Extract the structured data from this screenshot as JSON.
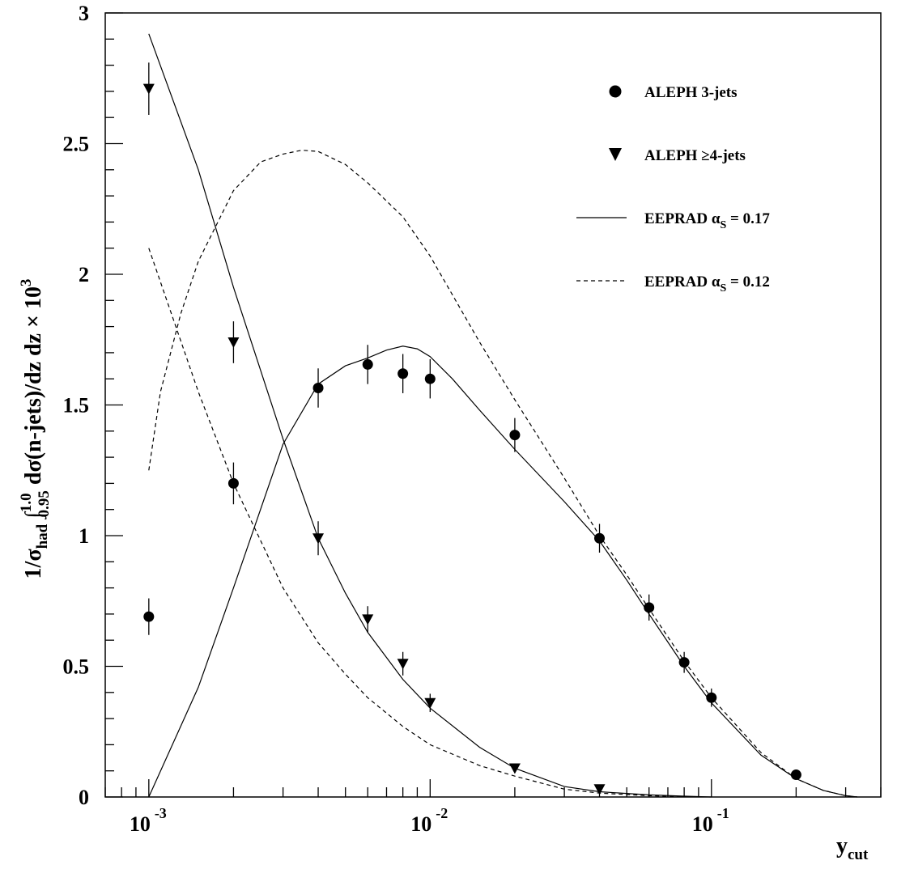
{
  "chart_data": {
    "type": "scatter",
    "x_scale": "log",
    "xlim": [
      0.0007,
      0.4
    ],
    "ylim": [
      0,
      3
    ],
    "x_ticks": [
      {
        "value": 0.001,
        "base": "10",
        "exp": "-3"
      },
      {
        "value": 0.01,
        "base": "10",
        "exp": "-2"
      },
      {
        "value": 0.1,
        "base": "10",
        "exp": "-1"
      }
    ],
    "y_ticks": [
      {
        "value": 0,
        "label": "0"
      },
      {
        "value": 0.5,
        "label": "0.5"
      },
      {
        "value": 1,
        "label": "1"
      },
      {
        "value": 1.5,
        "label": "1.5"
      },
      {
        "value": 2,
        "label": "2"
      },
      {
        "value": 2.5,
        "label": "2.5"
      },
      {
        "value": 3,
        "label": "3"
      }
    ],
    "xlabel": {
      "main": "y",
      "sub": "cut"
    },
    "ylabel": {
      "p1": "1/σ",
      "p1_sub": "had",
      "int_sign": "∫",
      "int_sup": "1.0",
      "int_sub": "0.95",
      "p2": " dσ(n-jets)/dz dz × 10",
      "p2_sup": "3"
    },
    "legend": {
      "position": "top-right",
      "entries": [
        {
          "marker": "circle",
          "label": "ALEPH 3-jets"
        },
        {
          "marker": "triangle-down",
          "label": "ALEPH ≥4-jets"
        },
        {
          "marker": "solid-line",
          "label": "EEPRAD α",
          "sub": "S",
          "tail": " = 0.17"
        },
        {
          "marker": "dashed-line",
          "label": "EEPRAD α",
          "sub": "S",
          "tail": " = 0.12"
        }
      ]
    },
    "series": [
      {
        "name": "ALEPH 3-jets",
        "marker": "circle",
        "points": [
          {
            "x": 0.001,
            "y": 0.69,
            "err": 0.07
          },
          {
            "x": 0.002,
            "y": 1.2,
            "err": 0.08
          },
          {
            "x": 0.004,
            "y": 1.565,
            "err": 0.075
          },
          {
            "x": 0.006,
            "y": 1.655,
            "err": 0.075
          },
          {
            "x": 0.008,
            "y": 1.62,
            "err": 0.075
          },
          {
            "x": 0.01,
            "y": 1.6,
            "err": 0.075
          },
          {
            "x": 0.02,
            "y": 1.385,
            "err": 0.065
          },
          {
            "x": 0.04,
            "y": 0.99,
            "err": 0.055
          },
          {
            "x": 0.06,
            "y": 0.725,
            "err": 0.05
          },
          {
            "x": 0.08,
            "y": 0.515,
            "err": 0.04
          },
          {
            "x": 0.1,
            "y": 0.38,
            "err": 0.035
          },
          {
            "x": 0.2,
            "y": 0.085,
            "err": 0.015
          }
        ]
      },
      {
        "name": "ALEPH ≥4-jets",
        "marker": "triangle-down",
        "points": [
          {
            "x": 0.001,
            "y": 2.71,
            "err": 0.1
          },
          {
            "x": 0.002,
            "y": 1.74,
            "err": 0.08
          },
          {
            "x": 0.004,
            "y": 0.99,
            "err": 0.065
          },
          {
            "x": 0.006,
            "y": 0.68,
            "err": 0.05
          },
          {
            "x": 0.008,
            "y": 0.51,
            "err": 0.045
          },
          {
            "x": 0.01,
            "y": 0.36,
            "err": 0.035
          },
          {
            "x": 0.02,
            "y": 0.11,
            "err": 0.015
          },
          {
            "x": 0.04,
            "y": 0.03,
            "err": 0.008
          }
        ]
      }
    ],
    "curves": [
      {
        "name": "EEPRAD 3-jets αS = 0.17",
        "style": "solid",
        "points": [
          [
            0.001,
            0.0
          ],
          [
            0.0015,
            0.42
          ],
          [
            0.002,
            0.8
          ],
          [
            0.003,
            1.35
          ],
          [
            0.004,
            1.58
          ],
          [
            0.005,
            1.65
          ],
          [
            0.006,
            1.68
          ],
          [
            0.007,
            1.71
          ],
          [
            0.008,
            1.725
          ],
          [
            0.009,
            1.715
          ],
          [
            0.01,
            1.685
          ],
          [
            0.012,
            1.6
          ],
          [
            0.015,
            1.48
          ],
          [
            0.02,
            1.33
          ],
          [
            0.03,
            1.13
          ],
          [
            0.04,
            0.98
          ],
          [
            0.05,
            0.83
          ],
          [
            0.06,
            0.7
          ],
          [
            0.08,
            0.5
          ],
          [
            0.1,
            0.36
          ],
          [
            0.15,
            0.16
          ],
          [
            0.2,
            0.07
          ],
          [
            0.25,
            0.025
          ],
          [
            0.3,
            0.005
          ],
          [
            0.33,
            0.0
          ]
        ]
      },
      {
        "name": "EEPRAD ≥4-jets αS = 0.17",
        "style": "solid",
        "points": [
          [
            0.001,
            2.92
          ],
          [
            0.0015,
            2.4
          ],
          [
            0.002,
            1.95
          ],
          [
            0.003,
            1.37
          ],
          [
            0.004,
            0.99
          ],
          [
            0.005,
            0.78
          ],
          [
            0.006,
            0.63
          ],
          [
            0.008,
            0.45
          ],
          [
            0.01,
            0.34
          ],
          [
            0.015,
            0.19
          ],
          [
            0.02,
            0.11
          ],
          [
            0.03,
            0.04
          ],
          [
            0.04,
            0.02
          ],
          [
            0.06,
            0.008
          ],
          [
            0.08,
            0.003
          ],
          [
            0.1,
            0.0
          ]
        ]
      },
      {
        "name": "EEPRAD 3-jets αS = 0.12",
        "style": "dashed",
        "points": [
          [
            0.001,
            1.25
          ],
          [
            0.0011,
            1.55
          ],
          [
            0.0013,
            1.85
          ],
          [
            0.0015,
            2.05
          ],
          [
            0.002,
            2.32
          ],
          [
            0.0025,
            2.43
          ],
          [
            0.003,
            2.46
          ],
          [
            0.0035,
            2.475
          ],
          [
            0.004,
            2.47
          ],
          [
            0.005,
            2.42
          ],
          [
            0.006,
            2.35
          ],
          [
            0.008,
            2.22
          ],
          [
            0.01,
            2.07
          ],
          [
            0.015,
            1.74
          ],
          [
            0.02,
            1.52
          ],
          [
            0.03,
            1.22
          ],
          [
            0.04,
            1.0
          ],
          [
            0.05,
            0.85
          ],
          [
            0.06,
            0.72
          ],
          [
            0.08,
            0.52
          ],
          [
            0.1,
            0.38
          ],
          [
            0.15,
            0.17
          ],
          [
            0.2,
            0.07
          ],
          [
            0.25,
            0.025
          ],
          [
            0.3,
            0.005
          ],
          [
            0.33,
            0.0
          ]
        ]
      },
      {
        "name": "EEPRAD ≥4-jets αS = 0.12",
        "style": "dashed",
        "points": [
          [
            0.001,
            2.1
          ],
          [
            0.0015,
            1.55
          ],
          [
            0.002,
            1.2
          ],
          [
            0.003,
            0.8
          ],
          [
            0.004,
            0.59
          ],
          [
            0.005,
            0.47
          ],
          [
            0.006,
            0.38
          ],
          [
            0.008,
            0.27
          ],
          [
            0.01,
            0.2
          ],
          [
            0.015,
            0.12
          ],
          [
            0.02,
            0.08
          ],
          [
            0.03,
            0.03
          ],
          [
            0.04,
            0.015
          ],
          [
            0.06,
            0.005
          ],
          [
            0.08,
            0.0
          ]
        ]
      }
    ]
  }
}
